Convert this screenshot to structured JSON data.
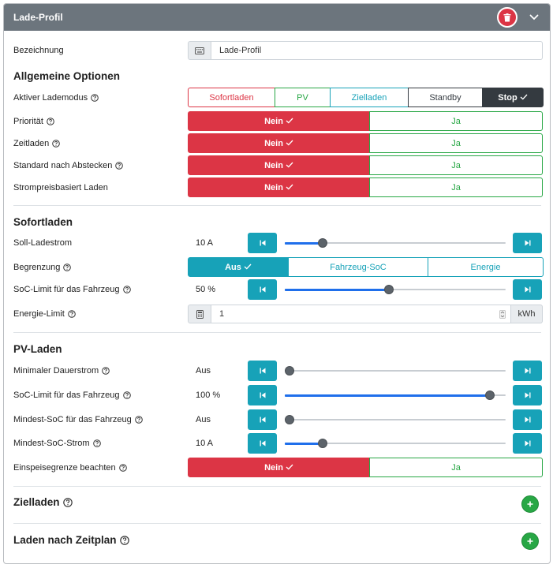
{
  "header": {
    "title": "Lade-Profil",
    "delete_icon": "trash-icon",
    "collapse_icon": "chevron-down-icon"
  },
  "colors": {
    "danger": "#dc3545",
    "success": "#28a745",
    "info": "#17a2b8",
    "primary": "#1f6feb",
    "dark": "#343a40",
    "header": "#6c757d"
  },
  "bezeichnung": {
    "label": "Bezeichnung",
    "value": "Lade-Profil",
    "icon": "keyboard-icon"
  },
  "allgemein": {
    "title": "Allgemeine Optionen",
    "lademodus": {
      "label": "Aktiver Lademodus",
      "options": [
        "Sofortladen",
        "PV",
        "Zielladen",
        "Standby",
        "Stop"
      ],
      "selected": "Stop"
    },
    "prioritaet": {
      "label": "Priorität",
      "no": "Nein",
      "yes": "Ja",
      "selected": "Nein"
    },
    "zeitladen": {
      "label": "Zeitladen",
      "no": "Nein",
      "yes": "Ja",
      "selected": "Nein"
    },
    "standard_nach_abstecken": {
      "label": "Standard nach Abstecken",
      "no": "Nein",
      "yes": "Ja",
      "selected": "Nein"
    },
    "strompreis": {
      "label": "Strompreisbasiert Laden",
      "no": "Nein",
      "yes": "Ja",
      "selected": "Nein"
    }
  },
  "sofortladen": {
    "title": "Sofortladen",
    "soll_ladestrom": {
      "label": "Soll-Ladestrom",
      "value": "10 A",
      "level": 0.17
    },
    "begrenzung": {
      "label": "Begrenzung",
      "options": [
        "Aus",
        "Fahrzeug-SoC",
        "Energie"
      ],
      "selected": "Aus"
    },
    "soc_limit": {
      "label": "SoC-Limit für das Fahrzeug",
      "value": "50 %",
      "level": 0.47
    },
    "energie_limit": {
      "label": "Energie-Limit",
      "value": "1",
      "unit": "kWh",
      "icon": "calculator-icon"
    }
  },
  "pv_laden": {
    "title": "PV-Laden",
    "min_dauerstrom": {
      "label": "Minimaler Dauerstrom",
      "value": "Aus",
      "level": 0.0
    },
    "soc_limit": {
      "label": "SoC-Limit für das Fahrzeug",
      "value": "100 %",
      "level": 0.93
    },
    "mindest_soc": {
      "label": "Mindest-SoC für das Fahrzeug",
      "value": "Aus",
      "level": 0.0
    },
    "mindest_soc_strom": {
      "label": "Mindest-SoC-Strom",
      "value": "10 A",
      "level": 0.17
    },
    "einspeisegrenze": {
      "label": "Einspeisegrenze beachten",
      "no": "Nein",
      "yes": "Ja",
      "selected": "Nein"
    }
  },
  "zielladen": {
    "title": "Zielladen"
  },
  "zeitplan": {
    "title": "Laden nach Zeitplan"
  }
}
